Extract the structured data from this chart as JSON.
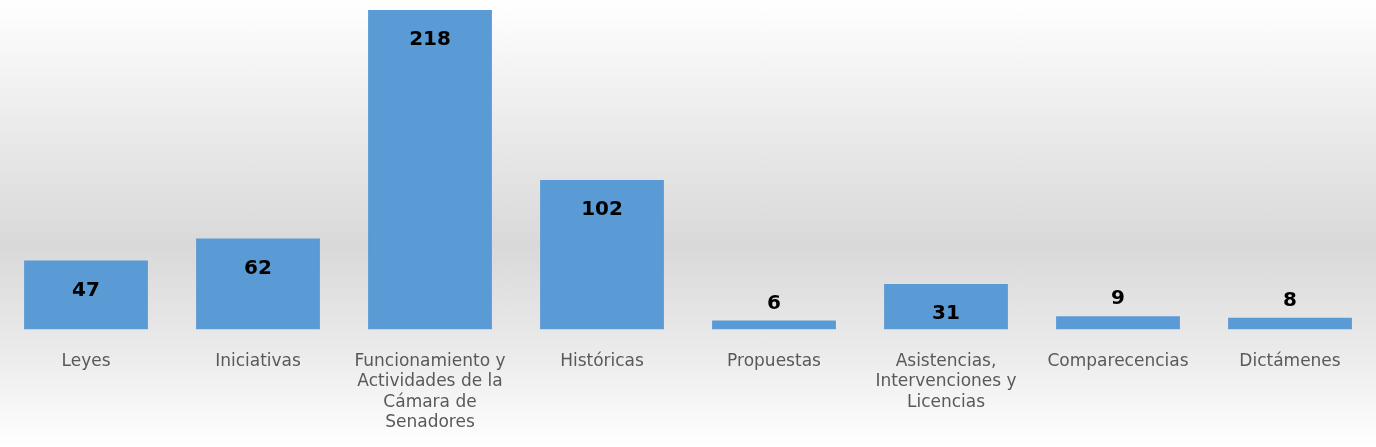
{
  "chart_data": {
    "type": "bar",
    "categories": [
      "Leyes",
      "Iniciativas",
      "Funcionamiento y Actividades de la Cámara de Senadores",
      "Históricas",
      "Propuestas",
      "Asistencias, Intervenciones y Licencias",
      "Comparecencias",
      "Dictámenes"
    ],
    "values": [
      47,
      62,
      218,
      102,
      6,
      31,
      9,
      8
    ],
    "color": "#5b9bd5",
    "data_labels": true
  }
}
